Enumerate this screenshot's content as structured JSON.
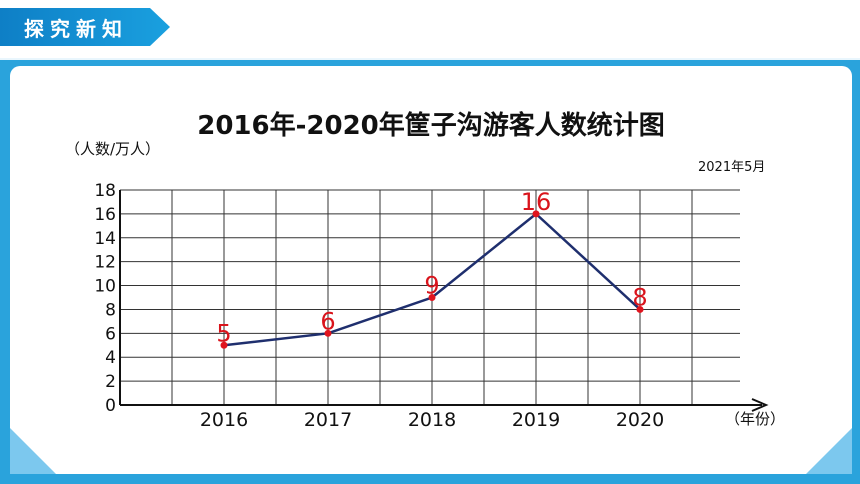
{
  "header": {
    "section_label": "探究新知"
  },
  "colors": {
    "background": "#2aa3dc",
    "banner": "#0e7fc6",
    "line": "#1f2f6e",
    "point": "#e0141e",
    "label": "#d9141c"
  },
  "chart_data": {
    "type": "line",
    "title": "2016年-2020年筐子沟游客人数统计图",
    "subtitle": "2021年5月",
    "ylabel": "（人数/万人）",
    "xlabel": "（年份）",
    "categories": [
      "2016",
      "2017",
      "2018",
      "2019",
      "2020"
    ],
    "values": [
      5,
      6,
      9,
      16,
      8
    ],
    "value_labels": [
      "5",
      "6",
      "9",
      "16",
      "8"
    ],
    "ylim": [
      0,
      18
    ],
    "yticks": [
      "0",
      "2",
      "4",
      "6",
      "8",
      "10",
      "12",
      "14",
      "16",
      "18"
    ],
    "grid": true
  }
}
